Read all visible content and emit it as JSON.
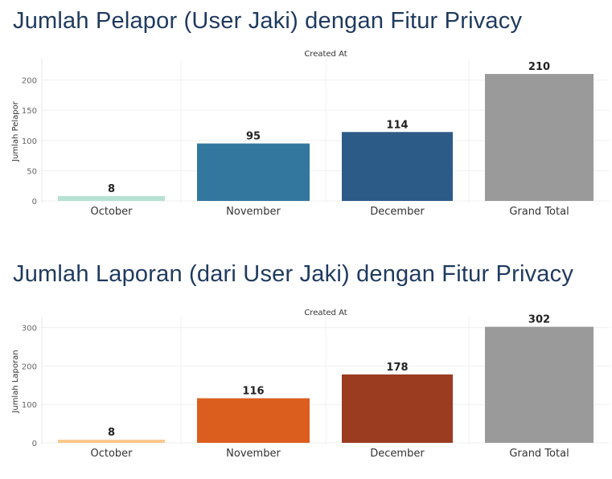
{
  "chart_data": [
    {
      "type": "bar",
      "title": "Jumlah Pelapor (User Jaki) dengan Fitur Privacy",
      "header": "Created At",
      "ylabel": "Jumlah Pelapor",
      "categories": [
        "October",
        "November",
        "December",
        "Grand Total"
      ],
      "values": [
        8,
        95,
        114,
        210
      ],
      "value_labels": [
        "8",
        "95",
        "114",
        "210"
      ],
      "colors": [
        "#b7e1d3",
        "#33779e",
        "#2d5b88",
        "#9a9a9a"
      ],
      "yticks": [
        0,
        50,
        100,
        150,
        200
      ],
      "ytick_labels": [
        "0",
        "50",
        "100",
        "150",
        "200"
      ],
      "ylim": [
        0,
        230
      ],
      "grid": true,
      "legend": "none"
    },
    {
      "type": "bar",
      "title": "Jumlah Laporan (dari User Jaki) dengan Fitur Privacy",
      "header": "Created At",
      "ylabel": "Jumlah Laporan",
      "categories": [
        "October",
        "November",
        "December",
        "Grand Total"
      ],
      "values": [
        8,
        116,
        178,
        302
      ],
      "value_labels": [
        "8",
        "116",
        "178",
        "302"
      ],
      "colors": [
        "#fdc687",
        "#dc5e1f",
        "#9b3b20",
        "#9a9a9a"
      ],
      "yticks": [
        0,
        100,
        200,
        300
      ],
      "ytick_labels": [
        "0",
        "100",
        "200",
        "300"
      ],
      "ylim": [
        0,
        320
      ],
      "grid": true,
      "legend": "none"
    }
  ]
}
